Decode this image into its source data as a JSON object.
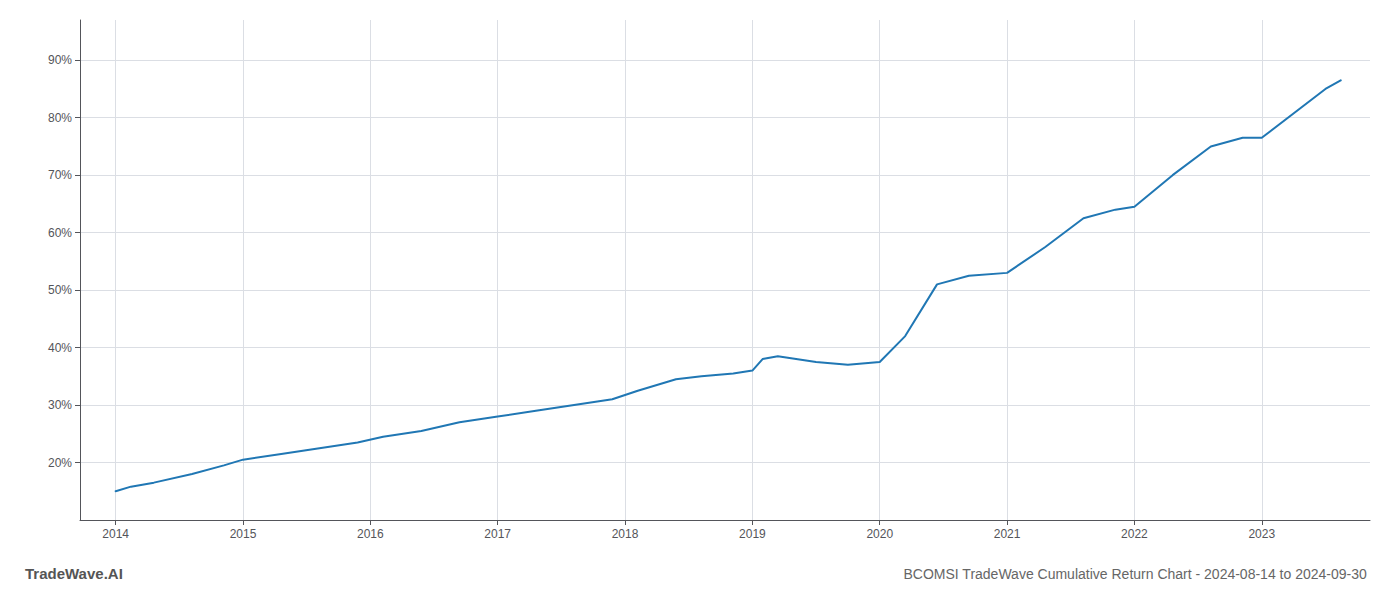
{
  "chart_data": {
    "type": "line",
    "title": "BCOMSI TradeWave Cumulative Return Chart - 2024-08-14 to 2024-09-30",
    "annotations": [
      "TradeWave.AI"
    ],
    "color": "#2077b4",
    "x": [
      2014.0,
      2014.12,
      2014.3,
      2014.6,
      2014.85,
      2015.0,
      2015.3,
      2015.6,
      2015.9,
      2016.1,
      2016.4,
      2016.7,
      2017.0,
      2017.3,
      2017.6,
      2017.9,
      2018.1,
      2018.4,
      2018.6,
      2018.85,
      2019.0,
      2019.08,
      2019.2,
      2019.5,
      2019.75,
      2020.0,
      2020.2,
      2020.45,
      2020.7,
      2021.0,
      2021.3,
      2021.6,
      2021.85,
      2022.0,
      2022.3,
      2022.6,
      2022.85,
      2023.0,
      2023.5,
      2023.62
    ],
    "values": [
      15.0,
      15.8,
      16.5,
      18.0,
      19.5,
      20.5,
      21.5,
      22.5,
      23.5,
      24.5,
      25.5,
      27.0,
      28.0,
      29.0,
      30.0,
      31.0,
      32.5,
      34.5,
      35.0,
      35.5,
      36.0,
      38.0,
      38.5,
      37.5,
      37.0,
      37.5,
      42.0,
      51.0,
      52.5,
      53.0,
      57.5,
      62.5,
      64.0,
      64.5,
      70.0,
      75.0,
      76.5,
      76.5,
      85.0,
      86.5
    ],
    "xlim": [
      2013.72,
      2023.85
    ],
    "ylim": [
      10,
      97
    ],
    "xticks": [
      2014,
      2015,
      2016,
      2017,
      2018,
      2019,
      2020,
      2021,
      2022,
      2023
    ],
    "yticks": [
      {
        "value": 20,
        "label": "20%"
      },
      {
        "value": 30,
        "label": "30%"
      },
      {
        "value": 40,
        "label": "40%"
      },
      {
        "value": 50,
        "label": "50%"
      },
      {
        "value": 60,
        "label": "60%"
      },
      {
        "value": 70,
        "label": "70%"
      },
      {
        "value": 80,
        "label": "80%"
      },
      {
        "value": 90,
        "label": "90%"
      }
    ],
    "grid": true
  }
}
